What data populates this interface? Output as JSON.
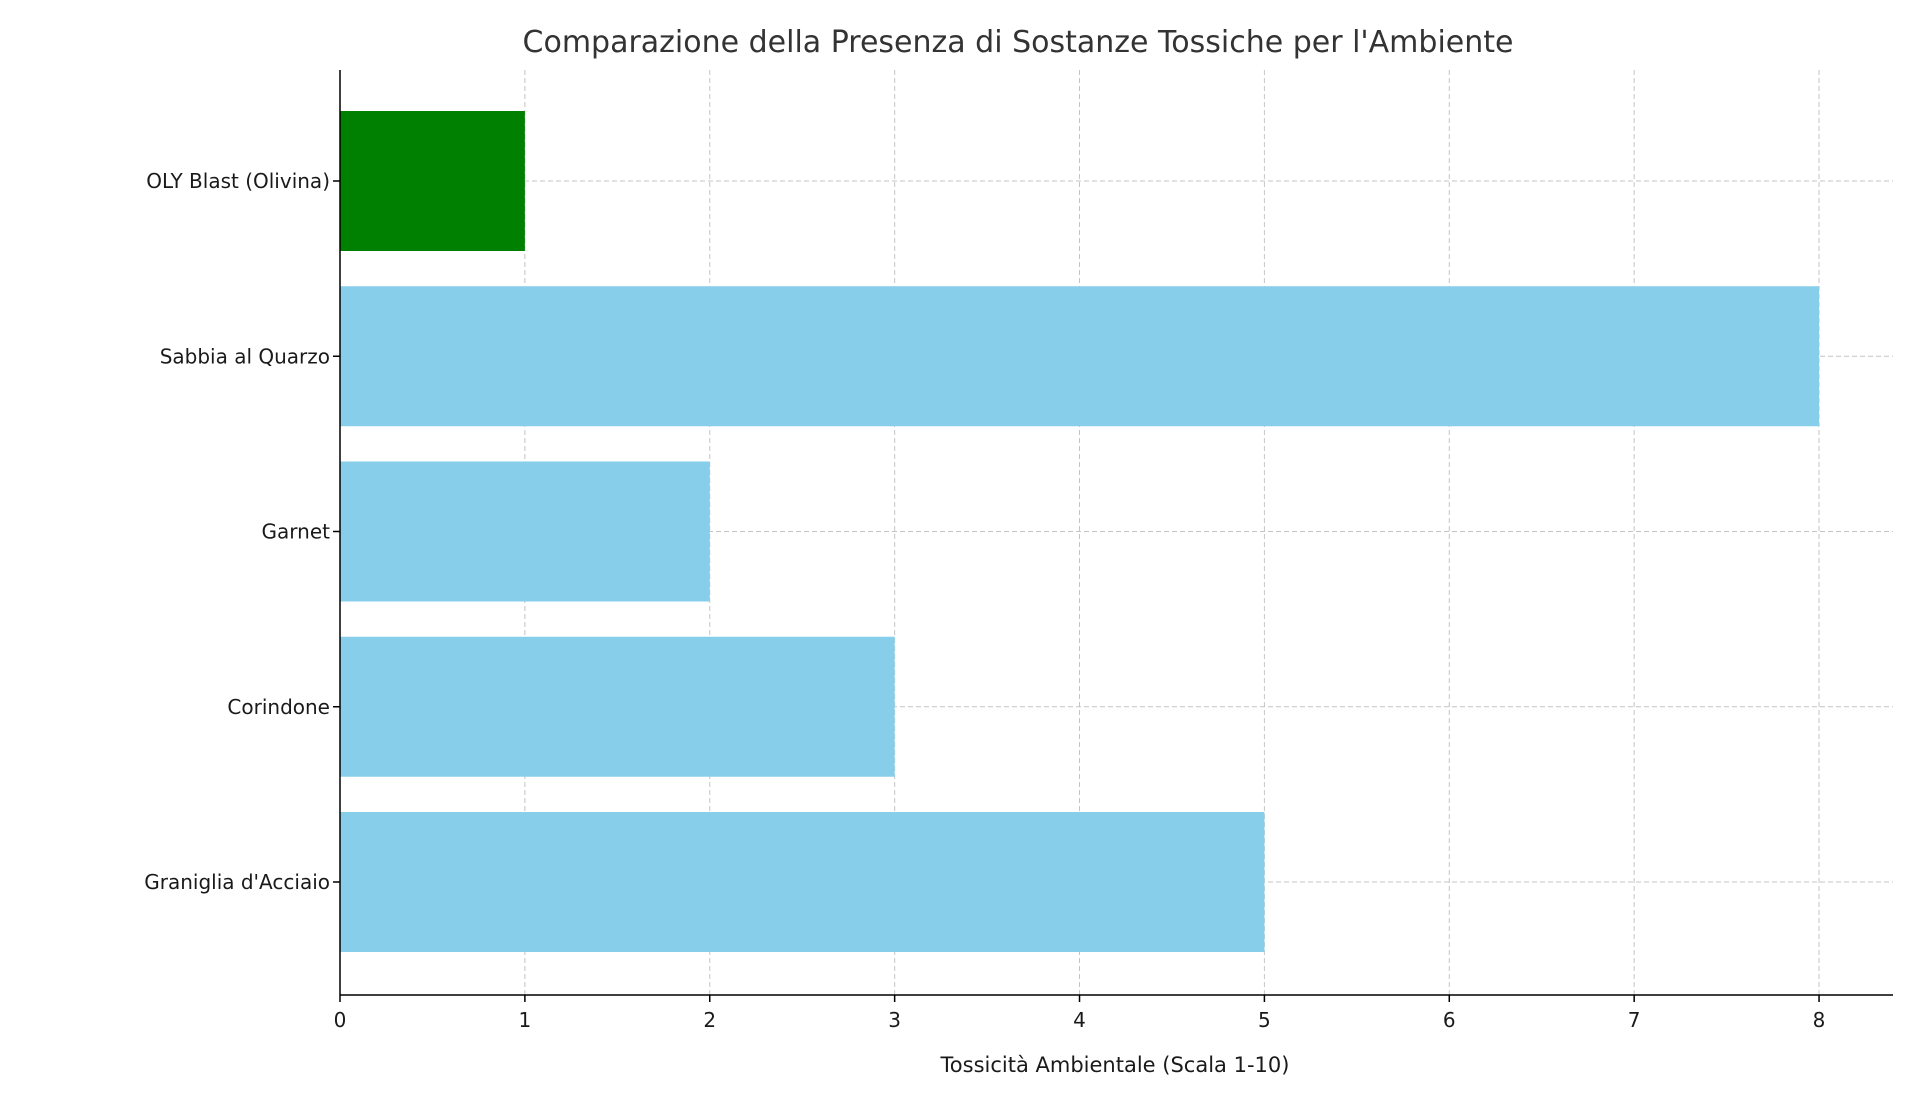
{
  "chart_data": {
    "type": "bar",
    "orientation": "horizontal",
    "title": "Comparazione della Presenza di Sostanze Tossiche per l'Ambiente",
    "xlabel": "Tossicità Ambientale (Scala 1-10)",
    "ylabel": "",
    "categories": [
      "Graniglia d'Acciaio",
      "Corindone",
      "Garnet",
      "Sabbia al Quarzo",
      "OLY Blast (Olivina)"
    ],
    "values": [
      5,
      3,
      2,
      8,
      1
    ],
    "bar_colors": [
      "#87CEEB",
      "#87CEEB",
      "#87CEEB",
      "#87CEEB",
      "#008000"
    ],
    "xlim": [
      0,
      8.4
    ],
    "xticks": [
      0,
      1,
      2,
      3,
      4,
      5,
      6,
      7,
      8
    ],
    "grid": true,
    "legend": "none"
  }
}
